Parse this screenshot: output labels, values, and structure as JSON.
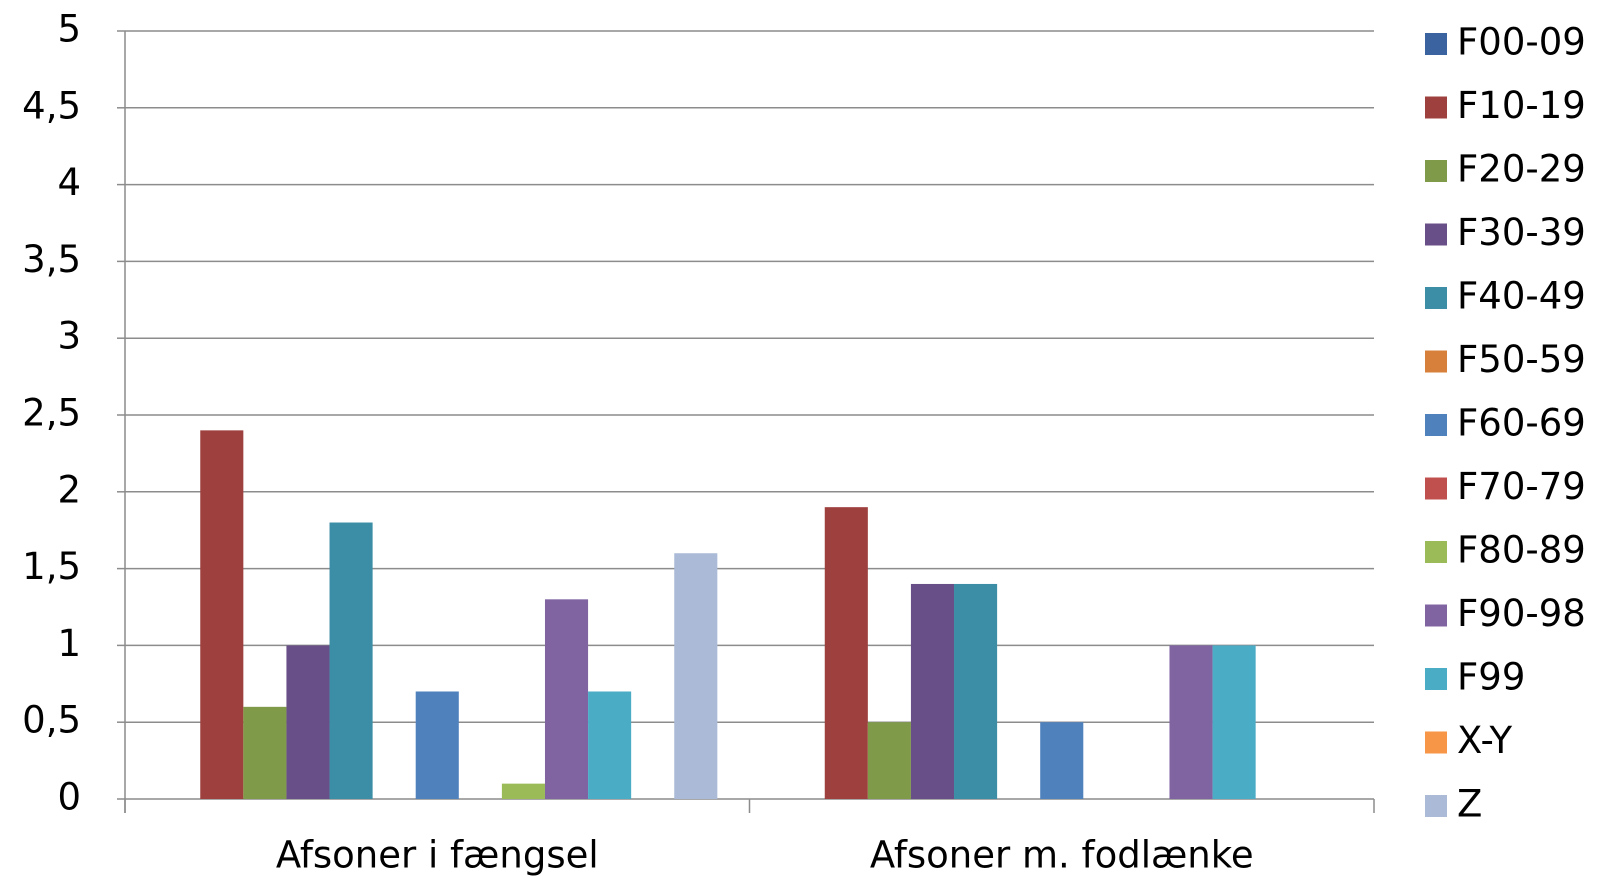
{
  "chart_data": {
    "type": "bar",
    "categories": [
      "Afsoner i fængsel",
      "Afsoner m. fodlænke"
    ],
    "series": [
      {
        "name": "F00-09",
        "color": "#3a63a0",
        "values": [
          0,
          0
        ]
      },
      {
        "name": "F10-19",
        "color": "#9e403d",
        "values": [
          2.4,
          1.9
        ]
      },
      {
        "name": "F20-29",
        "color": "#7f9a48",
        "values": [
          0.6,
          0.5
        ]
      },
      {
        "name": "F30-39",
        "color": "#684f87",
        "values": [
          1,
          1.4
        ]
      },
      {
        "name": "F40-49",
        "color": "#3b8ea5",
        "values": [
          1.8,
          1.4
        ]
      },
      {
        "name": "F50-59",
        "color": "#d6803b",
        "values": [
          0,
          0
        ]
      },
      {
        "name": "F60-69",
        "color": "#4f81bd",
        "values": [
          0.7,
          0.5
        ]
      },
      {
        "name": "F70-79",
        "color": "#c0504d",
        "values": [
          0,
          0
        ]
      },
      {
        "name": "F80-89",
        "color": "#9bbb59",
        "values": [
          0.1,
          0
        ]
      },
      {
        "name": "F90-98",
        "color": "#8064a2",
        "values": [
          1.3,
          1
        ]
      },
      {
        "name": "F99",
        "color": "#4bacc6",
        "values": [
          0.7,
          1
        ]
      },
      {
        "name": "X-Y",
        "color": "#f79646",
        "values": [
          0,
          0
        ]
      },
      {
        "name": "Z",
        "color": "#aabad7",
        "values": [
          1.6,
          0
        ]
      }
    ],
    "ylim": [
      0,
      5
    ],
    "yticks": [
      0,
      {
        "value": 0.5,
        "label": "0,5"
      },
      1,
      {
        "value": 1.5,
        "label": "1,5"
      },
      2,
      {
        "value": 2.5,
        "label": "2,5"
      },
      3,
      {
        "value": 3.5,
        "label": "3,5"
      },
      4,
      {
        "value": 4.5,
        "label": "4,5"
      },
      5
    ],
    "grid": true,
    "legend": "right"
  }
}
